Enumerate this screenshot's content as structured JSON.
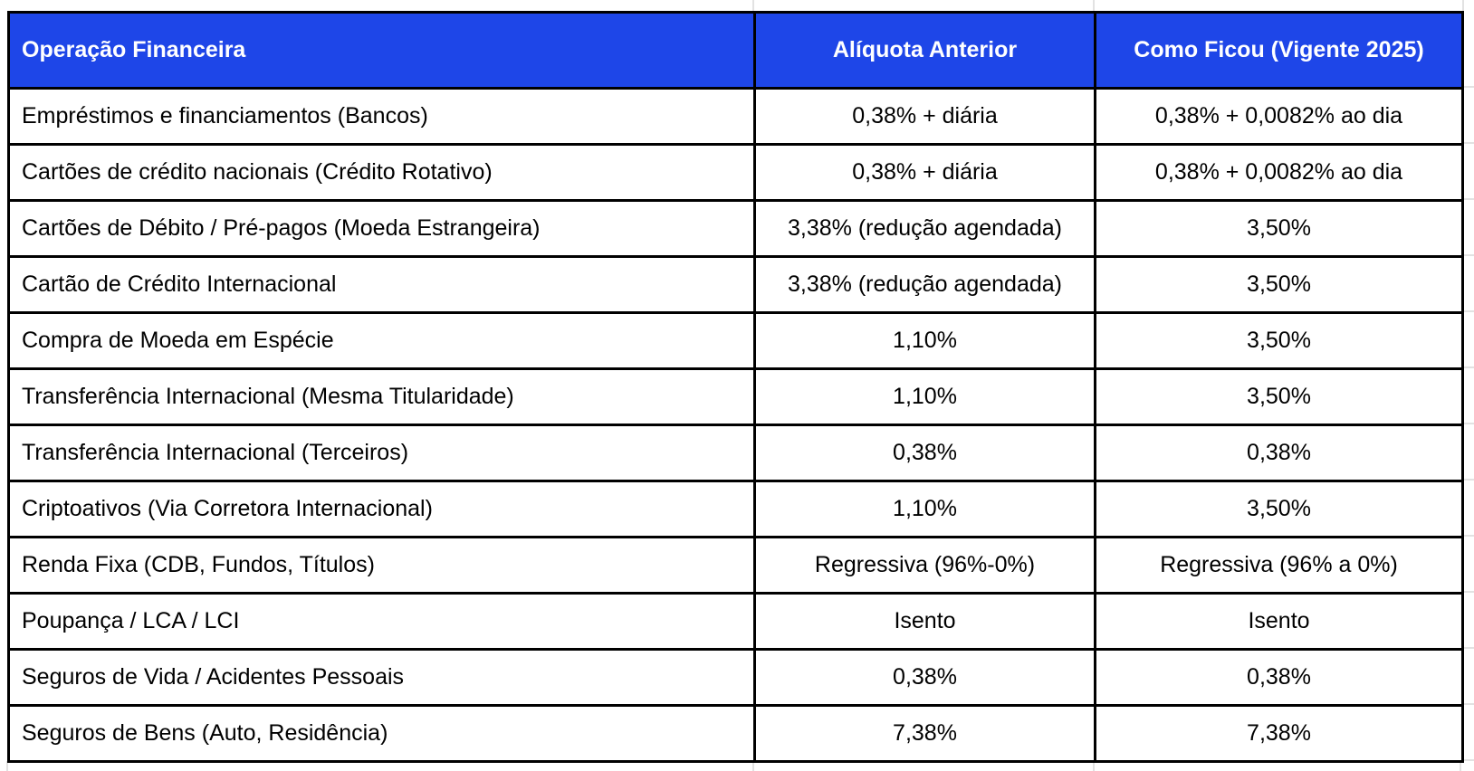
{
  "table": {
    "columns": [
      {
        "label": "Operação Financeira",
        "align": "left"
      },
      {
        "label": "Alíquota Anterior",
        "align": "center"
      },
      {
        "label": "Como Ficou (Vigente 2025)",
        "align": "center"
      }
    ],
    "rows": [
      [
        "Empréstimos e financiamentos (Bancos)",
        "0,38% + diária",
        "0,38% + 0,0082% ao dia"
      ],
      [
        "Cartões de crédito nacionais (Crédito Rotativo)",
        "0,38% + diária",
        "0,38% + 0,0082% ao dia"
      ],
      [
        "Cartões de Débito / Pré-pagos (Moeda Estrangeira)",
        "3,38% (redução agendada)",
        "3,50%"
      ],
      [
        "Cartão de Crédito Internacional",
        "3,38% (redução agendada)",
        "3,50%"
      ],
      [
        "Compra de Moeda em Espécie",
        "1,10%",
        "3,50%"
      ],
      [
        "Transferência Internacional (Mesma Titularidade)",
        "1,10%",
        "3,50%"
      ],
      [
        "Transferência Internacional (Terceiros)",
        "0,38%",
        "0,38%"
      ],
      [
        "Criptoativos (Via Corretora Internacional)",
        "1,10%",
        "3,50%"
      ],
      [
        "Renda Fixa (CDB, Fundos, Títulos)",
        "Regressiva (96%-0%)",
        "Regressiva (96% a 0%)"
      ],
      [
        "Poupança / LCA / LCI",
        "Isento",
        "Isento"
      ],
      [
        "Seguros de Vida / Acidentes Pessoais",
        "0,38%",
        "0,38%"
      ],
      [
        "Seguros de Bens (Auto, Residência)",
        "7,38%",
        "7,38%"
      ]
    ]
  },
  "colors": {
    "header_bg": "#1e46e8",
    "header_text": "#ffffff",
    "cell_bg": "#ffffff",
    "cell_text": "#000000",
    "border": "#000000",
    "gridline": "#e2e2e2"
  }
}
